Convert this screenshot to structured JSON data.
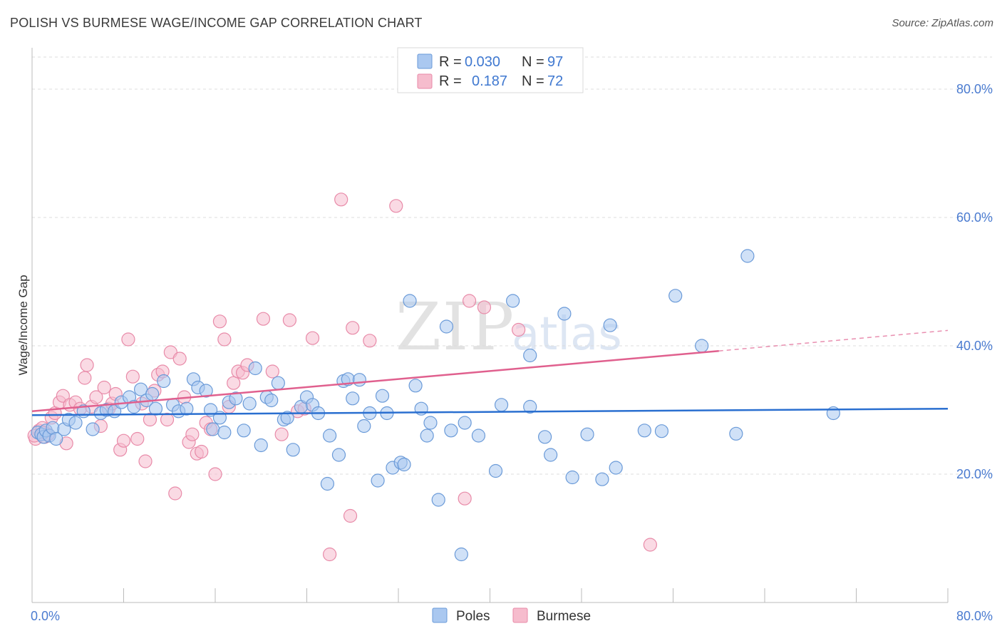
{
  "header": {
    "title": "POLISH VS BURMESE WAGE/INCOME GAP CORRELATION CHART",
    "source": "Source: ZipAtlas.com"
  },
  "chart_data": {
    "type": "scatter",
    "ylabel": "Wage/Income Gap",
    "xlim": [
      0,
      80
    ],
    "ylim": [
      0,
      85
    ],
    "x_tick_labels": [
      "0.0%",
      "80.0%"
    ],
    "y_ticks": [
      20,
      40,
      60,
      80
    ],
    "y_tick_labels": [
      "20.0%",
      "40.0%",
      "60.0%",
      "80.0%"
    ],
    "grid": true,
    "legend": {
      "position": "top-center",
      "entries": [
        {
          "r_label": "R =",
          "r_value": "0.030",
          "n_label": "N =",
          "n_value": "97"
        },
        {
          "r_label": "R =",
          "r_value": "0.187",
          "n_label": "N =",
          "n_value": "72"
        }
      ]
    },
    "bottom_legend": [
      "Poles",
      "Burmese"
    ],
    "colors": {
      "poles_fill": "#aac8f0",
      "poles_stroke": "#6a9ad8",
      "poles_line": "#2a6fd0",
      "burmese_fill": "#f6bccd",
      "burmese_stroke": "#e88aa8",
      "burmese_line": "#e0608e"
    },
    "series": [
      {
        "name": "Poles",
        "trend": {
          "x0": 0,
          "y0": 29.2,
          "x1": 80,
          "y1": 30.2
        },
        "points": [
          [
            0.5,
            26.5
          ],
          [
            0.8,
            26.2
          ],
          [
            1.0,
            25.8
          ],
          [
            1.2,
            26.8
          ],
          [
            1.5,
            26.0
          ],
          [
            1.8,
            27.2
          ],
          [
            2.1,
            25.5
          ],
          [
            2.8,
            27.0
          ],
          [
            3.2,
            28.5
          ],
          [
            3.8,
            28.0
          ],
          [
            4.5,
            29.8
          ],
          [
            5.3,
            27.0
          ],
          [
            6.0,
            29.5
          ],
          [
            6.5,
            30.0
          ],
          [
            7.2,
            29.8
          ],
          [
            7.8,
            31.2
          ],
          [
            8.5,
            32.0
          ],
          [
            8.9,
            30.5
          ],
          [
            9.5,
            33.2
          ],
          [
            10.0,
            31.5
          ],
          [
            10.5,
            32.5
          ],
          [
            10.8,
            30.2
          ],
          [
            11.5,
            34.5
          ],
          [
            12.3,
            30.8
          ],
          [
            12.8,
            29.8
          ],
          [
            13.5,
            30.2
          ],
          [
            14.1,
            34.8
          ],
          [
            14.5,
            33.5
          ],
          [
            15.2,
            33.0
          ],
          [
            15.6,
            30.0
          ],
          [
            15.8,
            27.0
          ],
          [
            16.4,
            28.8
          ],
          [
            16.8,
            26.5
          ],
          [
            17.2,
            31.2
          ],
          [
            17.8,
            31.8
          ],
          [
            18.5,
            26.8
          ],
          [
            19.0,
            31.0
          ],
          [
            19.5,
            36.5
          ],
          [
            20.0,
            24.5
          ],
          [
            20.5,
            32.0
          ],
          [
            20.9,
            31.5
          ],
          [
            21.5,
            34.2
          ],
          [
            22.0,
            28.5
          ],
          [
            22.3,
            28.8
          ],
          [
            22.8,
            23.8
          ],
          [
            23.5,
            30.5
          ],
          [
            24.0,
            32.0
          ],
          [
            24.5,
            30.8
          ],
          [
            25.0,
            29.5
          ],
          [
            25.8,
            18.5
          ],
          [
            26.0,
            26.0
          ],
          [
            26.8,
            23.0
          ],
          [
            27.2,
            34.5
          ],
          [
            27.6,
            34.8
          ],
          [
            28.0,
            31.8
          ],
          [
            28.6,
            34.7
          ],
          [
            29.0,
            27.5
          ],
          [
            29.5,
            29.5
          ],
          [
            30.2,
            19.0
          ],
          [
            30.6,
            32.2
          ],
          [
            31.0,
            29.5
          ],
          [
            31.5,
            21.0
          ],
          [
            32.2,
            21.8
          ],
          [
            32.5,
            21.5
          ],
          [
            33.0,
            47.0
          ],
          [
            33.5,
            33.8
          ],
          [
            34.0,
            30.2
          ],
          [
            34.5,
            26.0
          ],
          [
            34.8,
            28.0
          ],
          [
            35.5,
            16.0
          ],
          [
            36.2,
            43.0
          ],
          [
            36.6,
            26.8
          ],
          [
            37.5,
            7.5
          ],
          [
            37.8,
            28.0
          ],
          [
            39.0,
            26.0
          ],
          [
            41.0,
            30.8
          ],
          [
            40.5,
            20.5
          ],
          [
            42.0,
            47.0
          ],
          [
            43.5,
            38.5
          ],
          [
            43.5,
            30.5
          ],
          [
            44.8,
            25.8
          ],
          [
            45.3,
            23.0
          ],
          [
            46.5,
            45.0
          ],
          [
            47.2,
            19.5
          ],
          [
            48.5,
            26.2
          ],
          [
            49.8,
            19.2
          ],
          [
            50.5,
            43.2
          ],
          [
            51.0,
            21.0
          ],
          [
            53.5,
            26.8
          ],
          [
            55.0,
            26.7
          ],
          [
            56.2,
            47.8
          ],
          [
            58.5,
            40.0
          ],
          [
            61.5,
            26.3
          ],
          [
            70.0,
            29.5
          ],
          [
            62.5,
            54.0
          ]
        ]
      },
      {
        "name": "Burmese",
        "trend": {
          "x0": 0,
          "y0": 29.8,
          "x1": 60,
          "y1": 39.2
        },
        "trend_dashed": {
          "x0": 60,
          "y0": 39.2,
          "x1": 80,
          "y1": 42.4
        },
        "points": [
          [
            0.3,
            25.5
          ],
          [
            0.6,
            26.8
          ],
          [
            0.9,
            27.2
          ],
          [
            1.1,
            25.8
          ],
          [
            1.4,
            26.2
          ],
          [
            1.7,
            28.8
          ],
          [
            2.0,
            29.5
          ],
          [
            2.4,
            31.2
          ],
          [
            2.7,
            32.2
          ],
          [
            3.0,
            24.8
          ],
          [
            3.3,
            30.8
          ],
          [
            3.8,
            31.2
          ],
          [
            4.2,
            30.2
          ],
          [
            4.6,
            35.0
          ],
          [
            4.8,
            37.0
          ],
          [
            5.2,
            30.5
          ],
          [
            5.6,
            32.0
          ],
          [
            6.0,
            27.5
          ],
          [
            6.3,
            33.5
          ],
          [
            6.7,
            30.2
          ],
          [
            7.0,
            31.0
          ],
          [
            7.3,
            32.5
          ],
          [
            7.7,
            23.8
          ],
          [
            8.0,
            25.2
          ],
          [
            8.4,
            41.0
          ],
          [
            8.8,
            35.2
          ],
          [
            9.2,
            25.5
          ],
          [
            9.6,
            31.0
          ],
          [
            9.9,
            22.0
          ],
          [
            10.3,
            28.5
          ],
          [
            10.7,
            33.0
          ],
          [
            11.0,
            35.5
          ],
          [
            11.4,
            36.0
          ],
          [
            11.8,
            28.5
          ],
          [
            12.1,
            39.0
          ],
          [
            12.5,
            17.0
          ],
          [
            12.9,
            38.0
          ],
          [
            13.3,
            32.0
          ],
          [
            13.7,
            25.0
          ],
          [
            14.0,
            26.2
          ],
          [
            14.4,
            23.2
          ],
          [
            14.8,
            23.5
          ],
          [
            15.2,
            28.0
          ],
          [
            15.6,
            27.0
          ],
          [
            16.0,
            20.0
          ],
          [
            16.4,
            43.8
          ],
          [
            16.8,
            41.0
          ],
          [
            17.2,
            30.5
          ],
          [
            17.6,
            34.2
          ],
          [
            18.0,
            36.0
          ],
          [
            18.4,
            35.8
          ],
          [
            18.8,
            37.0
          ],
          [
            20.2,
            44.2
          ],
          [
            21.0,
            36.0
          ],
          [
            21.8,
            26.2
          ],
          [
            22.5,
            44.0
          ],
          [
            23.2,
            29.8
          ],
          [
            23.8,
            30.2
          ],
          [
            24.5,
            41.2
          ],
          [
            26.0,
            7.5
          ],
          [
            27.0,
            62.8
          ],
          [
            27.8,
            13.5
          ],
          [
            28.0,
            42.8
          ],
          [
            29.5,
            40.8
          ],
          [
            31.8,
            61.8
          ],
          [
            37.8,
            16.2
          ],
          [
            38.2,
            47.0
          ],
          [
            39.5,
            46.0
          ],
          [
            42.5,
            42.5
          ],
          [
            54.0,
            9.0
          ],
          [
            0.2,
            26.0
          ],
          [
            1.0,
            26.5
          ]
        ]
      }
    ]
  }
}
